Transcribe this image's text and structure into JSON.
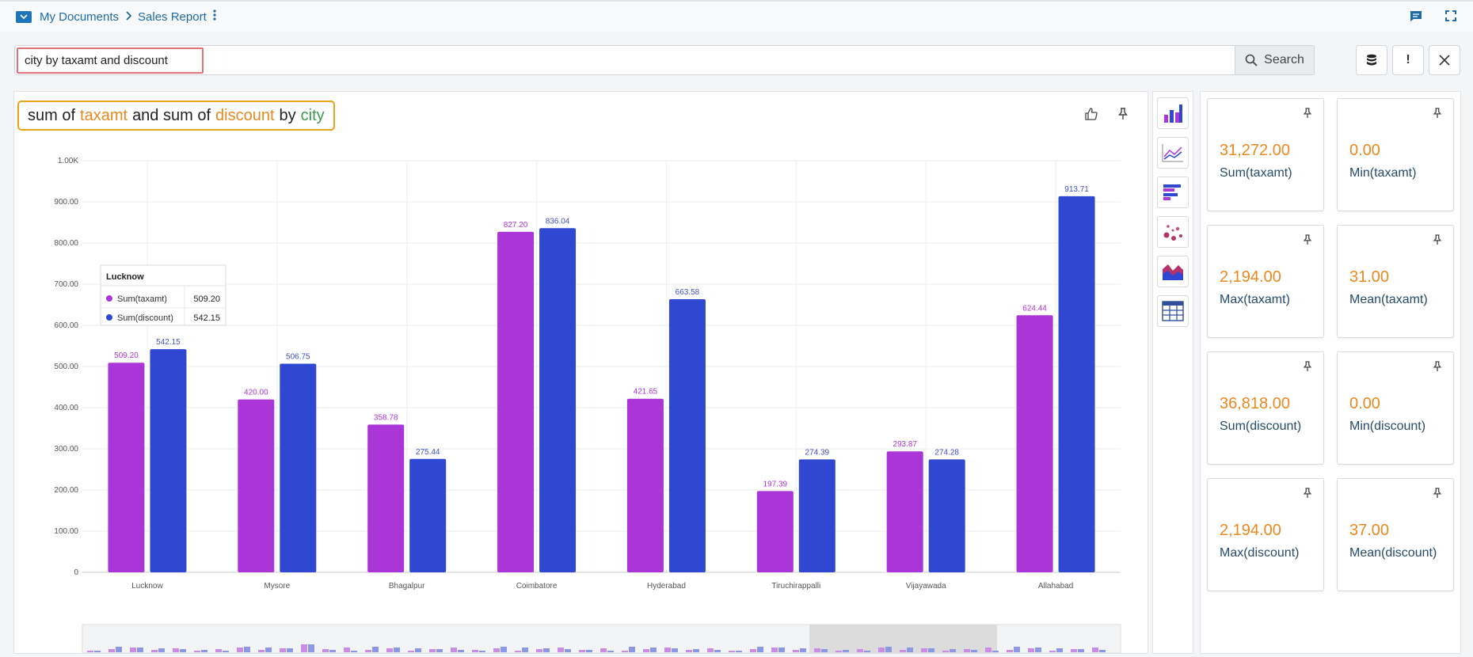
{
  "breadcrumb": {
    "root": "My Documents",
    "current": "Sales Report"
  },
  "search": {
    "value": "city by taxamt and discount",
    "button_label": "Search"
  },
  "actions": {
    "info_label": "!"
  },
  "title": {
    "sum_of_1": "sum of",
    "measure_1": "taxamt",
    "and": "and sum of",
    "measure_2": "discount",
    "by": "by",
    "dimension": "city"
  },
  "colors": {
    "series1": "#ab36d8",
    "series2": "#2f47d1",
    "accent": "#e8891f",
    "link": "#1e6aa5"
  },
  "icons": {
    "topbar": [
      "folder-icon",
      "comment-icon",
      "fullscreen-icon"
    ],
    "actions": [
      "database-icon",
      "info-icon",
      "close-icon"
    ],
    "panel": [
      "thumbs-up-icon",
      "pin-icon"
    ],
    "chart_types": [
      "bar-chart-icon",
      "line-chart-icon",
      "horizontal-bar-icon",
      "scatter-chart-icon",
      "area-chart-icon",
      "table-icon"
    ]
  },
  "chart_data": {
    "type": "bar",
    "categories": [
      "Lucknow",
      "Mysore",
      "Bhagalpur",
      "Coimbatore",
      "Hyderabad",
      "Tiruchirappalli",
      "Vijayawada",
      "Allahabad"
    ],
    "series": [
      {
        "name": "Sum(taxamt)",
        "values": [
          509.2,
          420.0,
          358.78,
          827.2,
          421.65,
          197.39,
          293.87,
          624.44
        ],
        "labels": [
          "509.20",
          "420.00",
          "358.78",
          "827.20",
          "421.65",
          "197.39",
          "293.87",
          "624.44"
        ]
      },
      {
        "name": "Sum(discount)",
        "values": [
          542.15,
          506.75,
          275.44,
          836.04,
          663.58,
          274.39,
          274.28,
          913.71
        ],
        "labels": [
          "542.15",
          "506.75",
          "275.44",
          "836.04",
          "663.58",
          "274.39",
          "274.28",
          "913.71"
        ]
      }
    ],
    "ylim": [
      0,
      1000
    ],
    "yticks": [
      "0",
      "100.00",
      "200.00",
      "300.00",
      "400.00",
      "500.00",
      "600.00",
      "700.00",
      "800.00",
      "900.00",
      "1.00K"
    ],
    "grid": true,
    "tooltip": {
      "title": "Lucknow",
      "rows": [
        {
          "name": "Sum(taxamt)",
          "value": "509.20"
        },
        {
          "name": "Sum(discount)",
          "value": "542.15"
        }
      ]
    }
  },
  "stats": [
    {
      "value": "31,272.00",
      "label": "Sum(taxamt)"
    },
    {
      "value": "0.00",
      "label": "Min(taxamt)"
    },
    {
      "value": "2,194.00",
      "label": "Max(taxamt)"
    },
    {
      "value": "31.00",
      "label": "Mean(taxamt)"
    },
    {
      "value": "36,818.00",
      "label": "Sum(discount)"
    },
    {
      "value": "0.00",
      "label": "Min(discount)"
    },
    {
      "value": "2,194.00",
      "label": "Max(discount)"
    },
    {
      "value": "37.00",
      "label": "Mean(discount)"
    }
  ]
}
